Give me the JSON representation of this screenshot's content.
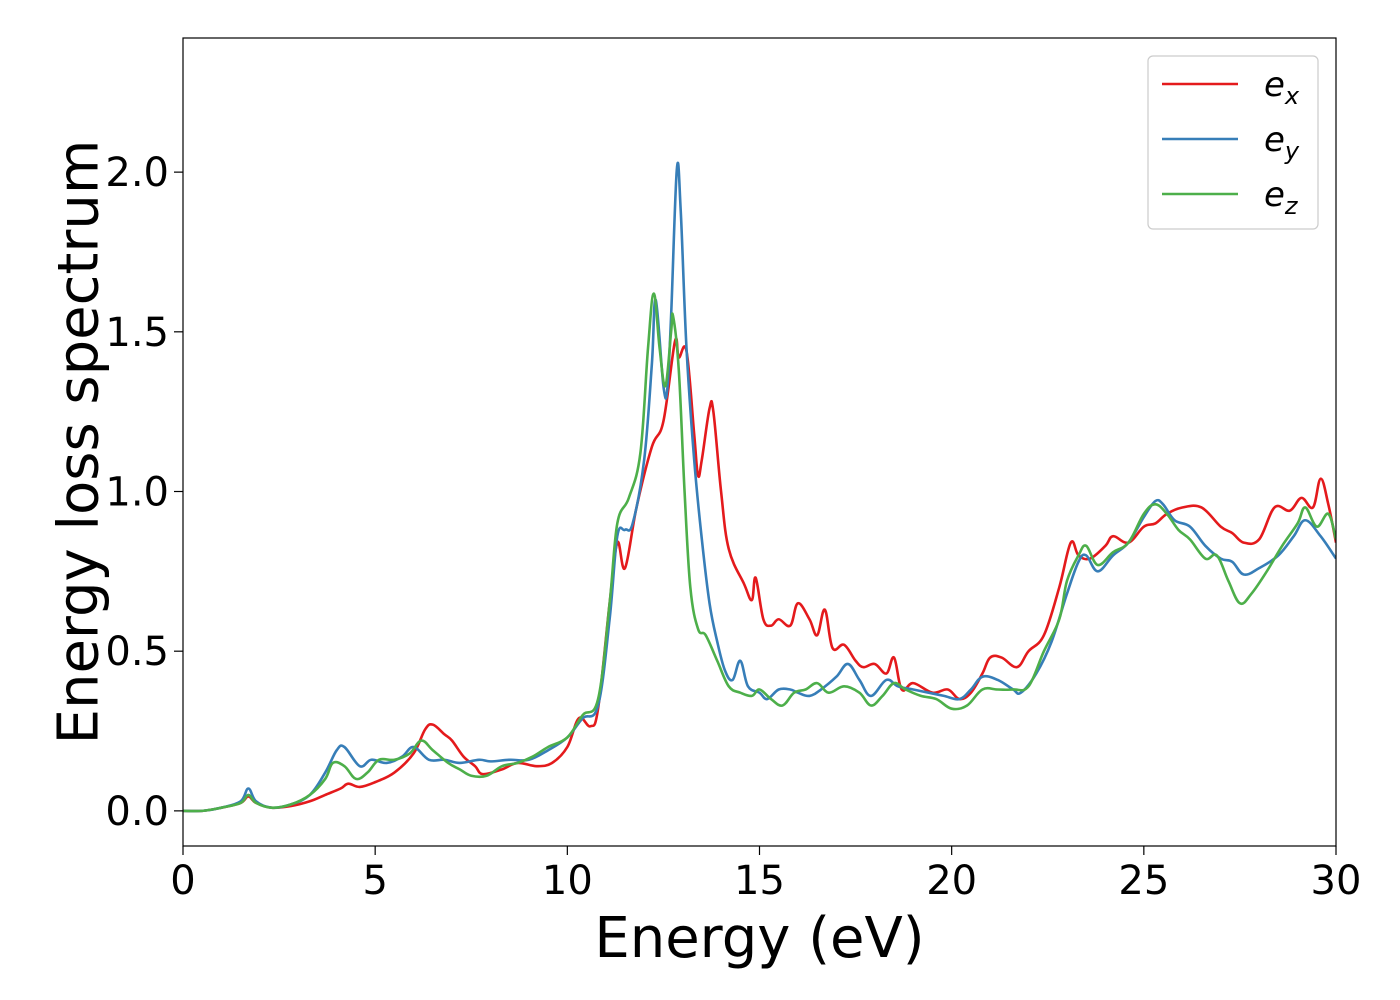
{
  "chart_data": {
    "type": "line",
    "title": "",
    "xlabel": "Energy (eV)",
    "ylabel": "Energy loss spectrum",
    "xlim": [
      0,
      30
    ],
    "ylim": [
      -0.11,
      2.42
    ],
    "xticks": [
      0,
      5,
      10,
      15,
      20,
      25,
      30
    ],
    "xtick_labels": [
      "0",
      "5",
      "10",
      "15",
      "20",
      "25",
      "30"
    ],
    "yticks": [
      0.0,
      0.5,
      1.0,
      1.5,
      2.0
    ],
    "ytick_labels": [
      "0.0",
      "0.5",
      "1.0",
      "1.5",
      "2.0"
    ],
    "grid": false,
    "legend_position": "top-right",
    "series": [
      {
        "name": "e_x",
        "label_main": "e",
        "label_sub": "x",
        "color": "#e41a1c",
        "points": [
          [
            0,
            0
          ],
          [
            0.5,
            0.0
          ],
          [
            1.0,
            0.01
          ],
          [
            1.5,
            0.025
          ],
          [
            1.7,
            0.045
          ],
          [
            1.9,
            0.025
          ],
          [
            2.3,
            0.01
          ],
          [
            2.8,
            0.015
          ],
          [
            3.3,
            0.03
          ],
          [
            3.7,
            0.05
          ],
          [
            4.1,
            0.07
          ],
          [
            4.3,
            0.085
          ],
          [
            4.6,
            0.075
          ],
          [
            5.0,
            0.09
          ],
          [
            5.5,
            0.12
          ],
          [
            6.0,
            0.18
          ],
          [
            6.3,
            0.255
          ],
          [
            6.5,
            0.27
          ],
          [
            6.8,
            0.24
          ],
          [
            7.0,
            0.22
          ],
          [
            7.3,
            0.17
          ],
          [
            7.6,
            0.14
          ],
          [
            7.8,
            0.115
          ],
          [
            8.3,
            0.13
          ],
          [
            8.7,
            0.15
          ],
          [
            9.2,
            0.14
          ],
          [
            9.6,
            0.15
          ],
          [
            10.0,
            0.2
          ],
          [
            10.3,
            0.29
          ],
          [
            10.6,
            0.265
          ],
          [
            10.8,
            0.32
          ],
          [
            11.1,
            0.65
          ],
          [
            11.3,
            0.84
          ],
          [
            11.5,
            0.76
          ],
          [
            11.8,
            0.95
          ],
          [
            12.2,
            1.14
          ],
          [
            12.5,
            1.22
          ],
          [
            12.8,
            1.47
          ],
          [
            12.9,
            1.42
          ],
          [
            13.1,
            1.44
          ],
          [
            13.3,
            1.18
          ],
          [
            13.4,
            1.05
          ],
          [
            13.5,
            1.1
          ],
          [
            13.7,
            1.26
          ],
          [
            13.8,
            1.25
          ],
          [
            14.0,
            1.0
          ],
          [
            14.2,
            0.82
          ],
          [
            14.6,
            0.71
          ],
          [
            14.8,
            0.66
          ],
          [
            14.9,
            0.73
          ],
          [
            15.1,
            0.6
          ],
          [
            15.3,
            0.58
          ],
          [
            15.5,
            0.6
          ],
          [
            15.8,
            0.58
          ],
          [
            16.0,
            0.65
          ],
          [
            16.3,
            0.6
          ],
          [
            16.5,
            0.55
          ],
          [
            16.7,
            0.63
          ],
          [
            16.9,
            0.51
          ],
          [
            17.2,
            0.52
          ],
          [
            17.5,
            0.47
          ],
          [
            17.7,
            0.45
          ],
          [
            18.0,
            0.46
          ],
          [
            18.3,
            0.43
          ],
          [
            18.5,
            0.48
          ],
          [
            18.7,
            0.38
          ],
          [
            19.0,
            0.4
          ],
          [
            19.5,
            0.37
          ],
          [
            19.9,
            0.38
          ],
          [
            20.2,
            0.35
          ],
          [
            20.5,
            0.37
          ],
          [
            20.8,
            0.43
          ],
          [
            21.0,
            0.48
          ],
          [
            21.3,
            0.48
          ],
          [
            21.7,
            0.45
          ],
          [
            22.0,
            0.5
          ],
          [
            22.4,
            0.55
          ],
          [
            22.8,
            0.7
          ],
          [
            23.1,
            0.84
          ],
          [
            23.3,
            0.8
          ],
          [
            23.6,
            0.79
          ],
          [
            24.0,
            0.83
          ],
          [
            24.2,
            0.86
          ],
          [
            24.6,
            0.84
          ],
          [
            25.0,
            0.89
          ],
          [
            25.3,
            0.9
          ],
          [
            25.6,
            0.93
          ],
          [
            26.0,
            0.95
          ],
          [
            26.5,
            0.95
          ],
          [
            27.0,
            0.89
          ],
          [
            27.3,
            0.87
          ],
          [
            27.6,
            0.84
          ],
          [
            28.0,
            0.85
          ],
          [
            28.4,
            0.95
          ],
          [
            28.8,
            0.94
          ],
          [
            29.1,
            0.98
          ],
          [
            29.4,
            0.95
          ],
          [
            29.6,
            1.04
          ],
          [
            29.8,
            0.96
          ],
          [
            30.0,
            0.84
          ]
        ]
      },
      {
        "name": "e_y",
        "label_main": "e",
        "label_sub": "y",
        "color": "#377eb8",
        "points": [
          [
            0,
            0
          ],
          [
            0.5,
            0.0
          ],
          [
            1.0,
            0.01
          ],
          [
            1.5,
            0.03
          ],
          [
            1.7,
            0.07
          ],
          [
            1.9,
            0.03
          ],
          [
            2.3,
            0.01
          ],
          [
            2.8,
            0.02
          ],
          [
            3.3,
            0.05
          ],
          [
            3.7,
            0.12
          ],
          [
            4.0,
            0.19
          ],
          [
            4.2,
            0.2
          ],
          [
            4.6,
            0.14
          ],
          [
            4.9,
            0.16
          ],
          [
            5.3,
            0.15
          ],
          [
            5.7,
            0.17
          ],
          [
            6.0,
            0.2
          ],
          [
            6.4,
            0.16
          ],
          [
            6.8,
            0.16
          ],
          [
            7.2,
            0.15
          ],
          [
            7.7,
            0.16
          ],
          [
            8.0,
            0.155
          ],
          [
            8.5,
            0.16
          ],
          [
            9.0,
            0.16
          ],
          [
            9.5,
            0.19
          ],
          [
            10.0,
            0.23
          ],
          [
            10.4,
            0.29
          ],
          [
            10.8,
            0.33
          ],
          [
            11.1,
            0.6
          ],
          [
            11.3,
            0.86
          ],
          [
            11.5,
            0.88
          ],
          [
            11.7,
            0.9
          ],
          [
            12.0,
            1.1
          ],
          [
            12.2,
            1.4
          ],
          [
            12.3,
            1.6
          ],
          [
            12.5,
            1.33
          ],
          [
            12.6,
            1.32
          ],
          [
            12.7,
            1.55
          ],
          [
            12.85,
            2.01
          ],
          [
            12.95,
            1.88
          ],
          [
            13.1,
            1.45
          ],
          [
            13.3,
            1.1
          ],
          [
            13.5,
            0.85
          ],
          [
            13.7,
            0.65
          ],
          [
            13.9,
            0.53
          ],
          [
            14.1,
            0.44
          ],
          [
            14.3,
            0.41
          ],
          [
            14.5,
            0.47
          ],
          [
            14.7,
            0.39
          ],
          [
            15.0,
            0.37
          ],
          [
            15.2,
            0.35
          ],
          [
            15.5,
            0.38
          ],
          [
            15.8,
            0.38
          ],
          [
            16.0,
            0.37
          ],
          [
            16.3,
            0.36
          ],
          [
            16.6,
            0.38
          ],
          [
            17.0,
            0.42
          ],
          [
            17.3,
            0.46
          ],
          [
            17.6,
            0.41
          ],
          [
            17.9,
            0.36
          ],
          [
            18.3,
            0.41
          ],
          [
            18.6,
            0.39
          ],
          [
            19.0,
            0.38
          ],
          [
            19.4,
            0.37
          ],
          [
            19.8,
            0.36
          ],
          [
            20.2,
            0.35
          ],
          [
            20.5,
            0.38
          ],
          [
            20.8,
            0.42
          ],
          [
            21.2,
            0.41
          ],
          [
            21.6,
            0.38
          ],
          [
            21.8,
            0.37
          ],
          [
            22.2,
            0.43
          ],
          [
            22.6,
            0.53
          ],
          [
            23.0,
            0.68
          ],
          [
            23.3,
            0.78
          ],
          [
            23.5,
            0.8
          ],
          [
            23.8,
            0.75
          ],
          [
            24.2,
            0.8
          ],
          [
            24.6,
            0.84
          ],
          [
            25.0,
            0.92
          ],
          [
            25.3,
            0.97
          ],
          [
            25.5,
            0.96
          ],
          [
            25.8,
            0.91
          ],
          [
            26.2,
            0.89
          ],
          [
            26.6,
            0.83
          ],
          [
            27.0,
            0.79
          ],
          [
            27.3,
            0.78
          ],
          [
            27.6,
            0.74
          ],
          [
            28.0,
            0.76
          ],
          [
            28.5,
            0.8
          ],
          [
            28.9,
            0.86
          ],
          [
            29.2,
            0.91
          ],
          [
            29.6,
            0.86
          ],
          [
            30.0,
            0.79
          ]
        ]
      },
      {
        "name": "e_z",
        "label_main": "e",
        "label_sub": "z",
        "color": "#4daf4a",
        "points": [
          [
            0,
            0
          ],
          [
            0.5,
            0.0
          ],
          [
            1.0,
            0.01
          ],
          [
            1.5,
            0.025
          ],
          [
            1.7,
            0.05
          ],
          [
            1.9,
            0.025
          ],
          [
            2.3,
            0.01
          ],
          [
            2.8,
            0.02
          ],
          [
            3.3,
            0.05
          ],
          [
            3.7,
            0.1
          ],
          [
            3.9,
            0.15
          ],
          [
            4.2,
            0.14
          ],
          [
            4.5,
            0.1
          ],
          [
            4.8,
            0.12
          ],
          [
            5.1,
            0.16
          ],
          [
            5.5,
            0.16
          ],
          [
            5.9,
            0.18
          ],
          [
            6.2,
            0.22
          ],
          [
            6.5,
            0.19
          ],
          [
            6.9,
            0.15
          ],
          [
            7.2,
            0.13
          ],
          [
            7.5,
            0.11
          ],
          [
            7.9,
            0.11
          ],
          [
            8.3,
            0.14
          ],
          [
            8.7,
            0.15
          ],
          [
            9.1,
            0.17
          ],
          [
            9.5,
            0.2
          ],
          [
            10.0,
            0.23
          ],
          [
            10.4,
            0.3
          ],
          [
            10.8,
            0.35
          ],
          [
            11.1,
            0.65
          ],
          [
            11.3,
            0.9
          ],
          [
            11.6,
            0.98
          ],
          [
            11.9,
            1.12
          ],
          [
            12.1,
            1.45
          ],
          [
            12.25,
            1.62
          ],
          [
            12.4,
            1.45
          ],
          [
            12.55,
            1.33
          ],
          [
            12.7,
            1.5
          ],
          [
            12.75,
            1.55
          ],
          [
            12.9,
            1.38
          ],
          [
            13.05,
            1.0
          ],
          [
            13.2,
            0.7
          ],
          [
            13.4,
            0.57
          ],
          [
            13.6,
            0.55
          ],
          [
            13.9,
            0.47
          ],
          [
            14.2,
            0.39
          ],
          [
            14.5,
            0.37
          ],
          [
            14.8,
            0.36
          ],
          [
            15.0,
            0.38
          ],
          [
            15.3,
            0.35
          ],
          [
            15.6,
            0.33
          ],
          [
            15.9,
            0.37
          ],
          [
            16.2,
            0.38
          ],
          [
            16.5,
            0.4
          ],
          [
            16.8,
            0.37
          ],
          [
            17.2,
            0.39
          ],
          [
            17.6,
            0.37
          ],
          [
            17.9,
            0.33
          ],
          [
            18.2,
            0.36
          ],
          [
            18.5,
            0.4
          ],
          [
            18.8,
            0.38
          ],
          [
            19.2,
            0.36
          ],
          [
            19.6,
            0.35
          ],
          [
            20.0,
            0.32
          ],
          [
            20.4,
            0.33
          ],
          [
            20.8,
            0.38
          ],
          [
            21.2,
            0.38
          ],
          [
            21.6,
            0.38
          ],
          [
            22.0,
            0.39
          ],
          [
            22.4,
            0.5
          ],
          [
            22.8,
            0.6
          ],
          [
            23.0,
            0.72
          ],
          [
            23.3,
            0.8
          ],
          [
            23.5,
            0.83
          ],
          [
            23.8,
            0.77
          ],
          [
            24.2,
            0.81
          ],
          [
            24.6,
            0.84
          ],
          [
            25.0,
            0.93
          ],
          [
            25.3,
            0.96
          ],
          [
            25.6,
            0.93
          ],
          [
            25.9,
            0.88
          ],
          [
            26.2,
            0.85
          ],
          [
            26.6,
            0.79
          ],
          [
            26.9,
            0.8
          ],
          [
            27.2,
            0.72
          ],
          [
            27.5,
            0.65
          ],
          [
            27.8,
            0.68
          ],
          [
            28.2,
            0.75
          ],
          [
            28.6,
            0.83
          ],
          [
            29.0,
            0.9
          ],
          [
            29.2,
            0.95
          ],
          [
            29.5,
            0.89
          ],
          [
            29.8,
            0.93
          ],
          [
            30.0,
            0.85
          ]
        ]
      }
    ]
  }
}
